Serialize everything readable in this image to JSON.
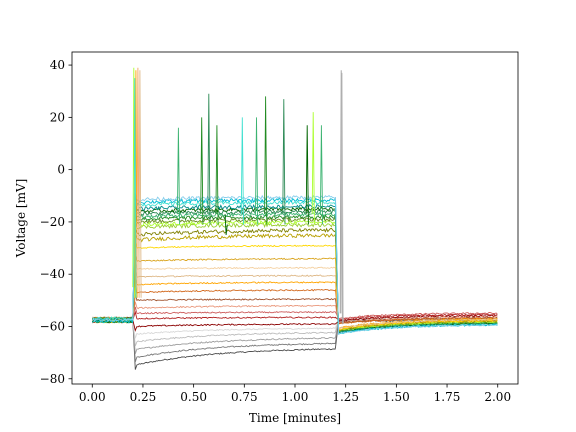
{
  "chart_data": {
    "type": "line",
    "title": "",
    "xlabel": "Time [minutes]",
    "ylabel": "Voltage [mV]",
    "xlim": [
      -0.1,
      2.1
    ],
    "ylim": [
      -82,
      45
    ],
    "xticks": [
      0.0,
      0.25,
      0.5,
      0.75,
      1.0,
      1.25,
      1.5,
      1.75,
      2.0
    ],
    "xtick_labels": [
      "0.00",
      "0.25",
      "0.50",
      "0.75",
      "1.00",
      "1.25",
      "1.50",
      "1.75",
      "2.00"
    ],
    "yticks": [
      -80,
      -60,
      -40,
      -20,
      0,
      20,
      40
    ],
    "ytick_labels": [
      "−80",
      "−60",
      "−40",
      "−20",
      "0",
      "20",
      "40"
    ],
    "grid": false,
    "legend": "none",
    "stimulus": {
      "start_min": 0.2,
      "end_min": 1.2,
      "baseline_mV": -57.5
    },
    "series": [
      {
        "color": "#4d4d4d",
        "plateau_mV": -75.0,
        "end_mV": -68.0,
        "post_mV": -59.0
      },
      {
        "color": "#7a7a7a",
        "plateau_mV": -72.0,
        "end_mV": -66.0,
        "post_mV": -58.8
      },
      {
        "color": "#9e9e9e",
        "plateau_mV": -69.0,
        "end_mV": -64.0,
        "post_mV": -58.6
      },
      {
        "color": "#bdbdbd",
        "plateau_mV": -66.0,
        "end_mV": -62.0,
        "post_mV": -58.4
      },
      {
        "color": "#d9d9d9",
        "plateau_mV": -63.0,
        "end_mV": -60.5,
        "post_mV": -58.2
      },
      {
        "color": "#8b0000",
        "plateau_mV": -60.0,
        "end_mV": -59.0,
        "post_mV": -57.0
      },
      {
        "color": "#b22222",
        "plateau_mV": -57.0,
        "end_mV": -56.5,
        "post_mV": -56.5
      },
      {
        "color": "#cd5c5c",
        "plateau_mV": -55.0,
        "end_mV": -54.5,
        "post_mV": -56.0
      },
      {
        "color": "#e9967a",
        "plateau_mV": -53.0,
        "end_mV": -52.0,
        "post_mV": -57.5
      },
      {
        "color": "#a0522d",
        "plateau_mV": -50.0,
        "end_mV": -49.5,
        "post_mV": -57.8
      },
      {
        "color": "#d2691e",
        "plateau_mV": -47.0,
        "end_mV": -46.0,
        "post_mV": -58.0
      },
      {
        "color": "#ffa500",
        "plateau_mV": -44.0,
        "end_mV": -43.0,
        "post_mV": -58.2
      },
      {
        "color": "#deb887",
        "plateau_mV": -41.0,
        "end_mV": -40.5,
        "post_mV": -58.4
      },
      {
        "color": "#f4d0a0",
        "plateau_mV": -38.0,
        "end_mV": -37.5,
        "post_mV": -58.6
      },
      {
        "color": "#daa520",
        "plateau_mV": -35.0,
        "end_mV": -34.0,
        "post_mV": -58.8
      },
      {
        "color": "#ffd700",
        "plateau_mV": -30.0,
        "end_mV": -29.0,
        "post_mV": -59.0
      },
      {
        "color": "#b8a000",
        "plateau_mV": -27.0,
        "end_mV": -25.0,
        "post_mV": -59.2
      },
      {
        "color": "#808000",
        "plateau_mV": -25.0,
        "end_mV": -23.0,
        "post_mV": -59.4
      },
      {
        "color": "#9acd32",
        "plateau_mV": -22.0,
        "end_mV": -21.0,
        "post_mV": -59.5
      },
      {
        "color": "#adff2f",
        "plateau_mV": -21.0,
        "end_mV": -20.0,
        "post_mV": -59.5
      },
      {
        "color": "#6b8e23",
        "plateau_mV": -20.0,
        "end_mV": -19.0,
        "post_mV": -59.7
      },
      {
        "color": "#228b22",
        "plateau_mV": -19.0,
        "end_mV": -18.0,
        "post_mV": -59.8
      },
      {
        "color": "#3cb371",
        "plateau_mV": -18.0,
        "end_mV": -17.0,
        "post_mV": -59.9
      },
      {
        "color": "#2e8b57",
        "plateau_mV": -17.0,
        "end_mV": -16.0,
        "post_mV": -60.0
      },
      {
        "color": "#006400",
        "plateau_mV": -16.0,
        "end_mV": -15.0,
        "post_mV": -60.1
      },
      {
        "color": "#008b8b",
        "plateau_mV": -15.0,
        "end_mV": -14.0,
        "post_mV": -60.2
      },
      {
        "color": "#40e0d0",
        "plateau_mV": -13.5,
        "end_mV": -12.5,
        "post_mV": -60.3
      },
      {
        "color": "#00bcd4",
        "plateau_mV": -12.5,
        "end_mV": -11.5,
        "post_mV": -60.4
      },
      {
        "color": "#87ceeb",
        "plateau_mV": -11.5,
        "end_mV": -10.5,
        "post_mV": -60.4
      }
    ],
    "spikes": [
      {
        "t": 0.425,
        "peak_mV": 16,
        "color": "#3cb371"
      },
      {
        "t": 0.54,
        "peak_mV": 20,
        "color": "#228b22"
      },
      {
        "t": 0.575,
        "peak_mV": 29,
        "color": "#2e8b57"
      },
      {
        "t": 0.615,
        "peak_mV": 17,
        "color": "#228b22"
      },
      {
        "t": 0.74,
        "peak_mV": 20,
        "color": "#40e0d0"
      },
      {
        "t": 0.81,
        "peak_mV": 20,
        "color": "#3cb371"
      },
      {
        "t": 0.855,
        "peak_mV": 28,
        "color": "#228b22"
      },
      {
        "t": 0.945,
        "peak_mV": 27,
        "color": "#2e8b57"
      },
      {
        "t": 1.09,
        "peak_mV": 22,
        "color": "#adff2f"
      },
      {
        "t": 1.13,
        "peak_mV": 17,
        "color": "#3cb371"
      },
      {
        "t": 1.06,
        "peak_mV": 17,
        "color": "#006400"
      },
      {
        "t": 0.66,
        "peak_mV": -25,
        "color": "#006400"
      }
    ],
    "onset_spikes": [
      {
        "t": 0.205,
        "peak_mV": 39,
        "color": "#adff2f"
      },
      {
        "t": 0.215,
        "peak_mV": 38,
        "color": "#ffa500"
      },
      {
        "t": 0.225,
        "peak_mV": 39,
        "color": "#f4a460"
      },
      {
        "t": 0.21,
        "peak_mV": 35,
        "color": "#40e0d0"
      },
      {
        "t": 0.235,
        "peak_mV": 38,
        "color": "#deb887"
      }
    ],
    "rebound_spikes": [
      {
        "t": 1.228,
        "peak_mV": 38,
        "color": "#9e9e9e"
      },
      {
        "t": 1.232,
        "peak_mV": 37,
        "color": "#bdbdbd"
      }
    ]
  }
}
